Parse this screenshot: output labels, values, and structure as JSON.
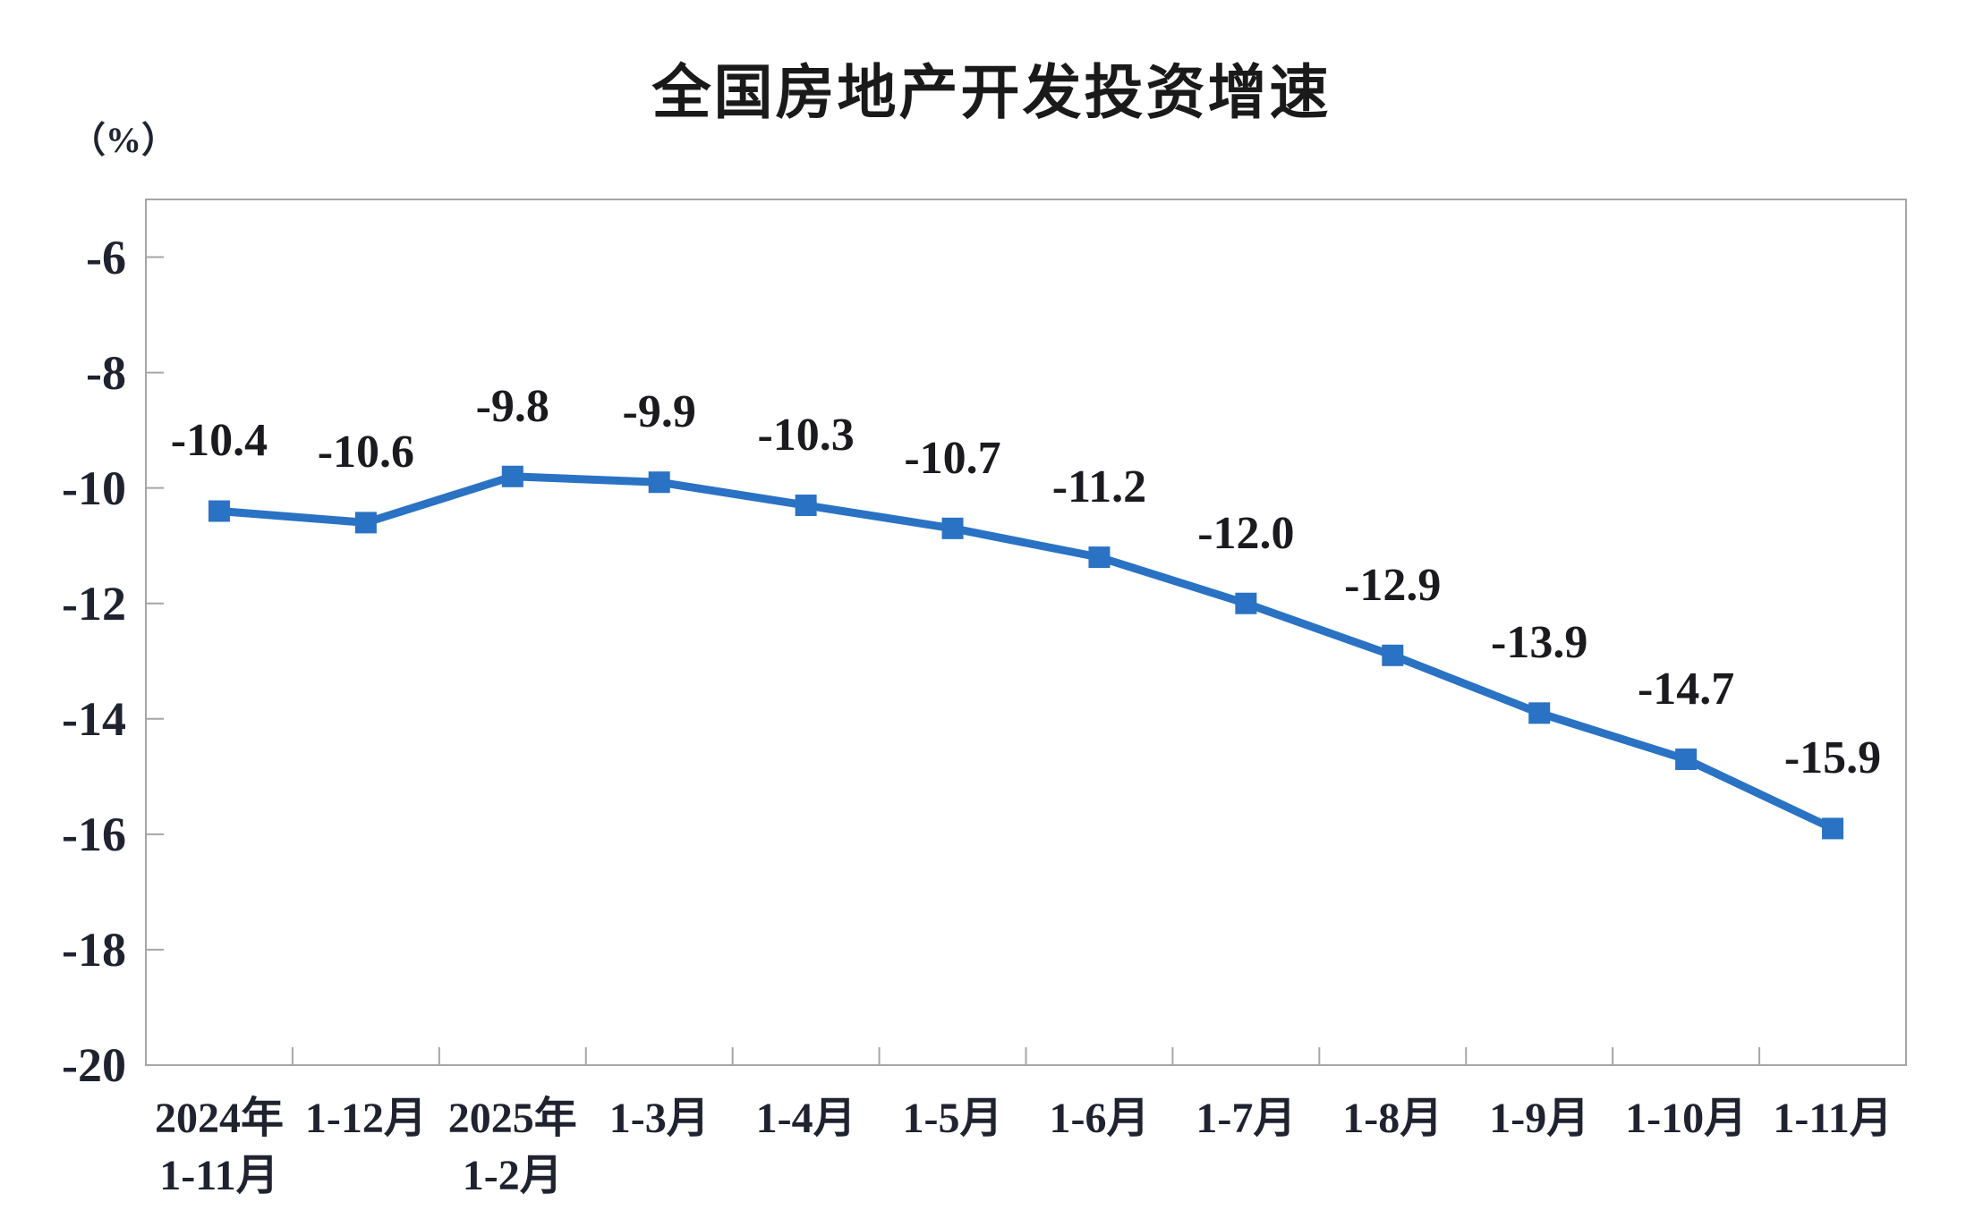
{
  "page": {
    "background": "#ffffff"
  },
  "header": {
    "title": "全国房地产开发投资增速",
    "unit_label": "（%）"
  },
  "colors": {
    "line": "#2a72c3",
    "marker": "#2a72c3",
    "axis": "#a6a6a6",
    "text": "#1f2330"
  },
  "chart_data": {
    "type": "line",
    "title": "全国房地产开发投资增速",
    "ylabel": "（%）",
    "xlabel": "",
    "categories": [
      [
        "2024年",
        "1-11月"
      ],
      [
        "1-12月"
      ],
      [
        "2025年",
        "1-2月"
      ],
      [
        "1-3月"
      ],
      [
        "1-4月"
      ],
      [
        "1-5月"
      ],
      [
        "1-6月"
      ],
      [
        "1-7月"
      ],
      [
        "1-8月"
      ],
      [
        "1-9月"
      ],
      [
        "1-10月"
      ],
      [
        "1-11月"
      ]
    ],
    "series": [
      {
        "name": "全国房地产开发投资增速",
        "values": [
          -10.4,
          -10.6,
          -9.8,
          -9.9,
          -10.3,
          -10.7,
          -11.2,
          -12.0,
          -12.9,
          -13.9,
          -14.7,
          -15.9
        ],
        "value_labels": [
          "-10.4",
          "-10.6",
          "-9.8",
          "-9.9",
          "-10.3",
          "-10.7",
          "-11.2",
          "-12.0",
          "-12.9",
          "-13.9",
          "-14.7",
          "-15.9"
        ]
      }
    ],
    "ylim": [
      -20,
      -5
    ],
    "yticks": [
      -6,
      -8,
      -10,
      -12,
      -14,
      -16,
      -18,
      -20
    ],
    "ytick_labels": [
      "-6",
      "-8",
      "-10",
      "-12",
      "-14",
      "-16",
      "-18",
      "-20"
    ],
    "grid": false,
    "legend_position": "none",
    "marker_shape": "square",
    "plot_border": true
  }
}
